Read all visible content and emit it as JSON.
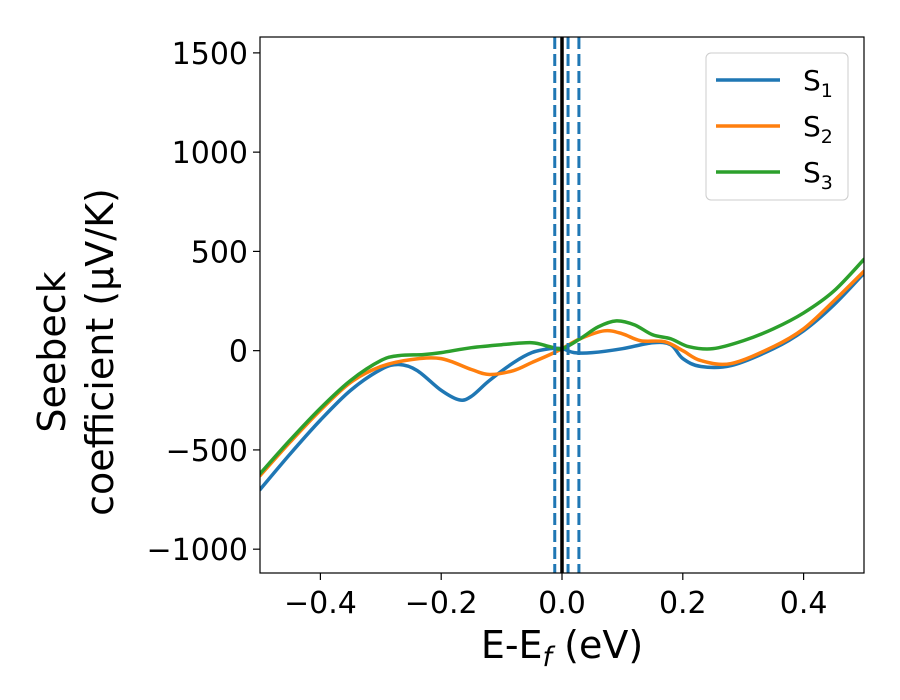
{
  "chart_data": {
    "type": "line",
    "title": "",
    "xlabel": "E-E",
    "xlabel_sub": "f",
    "xlabel_unit": " (eV)",
    "ylabel_line1": "Seebeck",
    "ylabel_line2": "coefficient  (μV/K)",
    "xlim": [
      -0.5,
      0.5
    ],
    "ylim": [
      -1120,
      1580
    ],
    "xticks": [
      -0.4,
      -0.2,
      0.0,
      0.2,
      0.4
    ],
    "xtick_labels": [
      "−0.4",
      "−0.2",
      "0.0",
      "0.2",
      "0.4"
    ],
    "yticks": [
      -1000,
      -500,
      0,
      500,
      1000,
      1500
    ],
    "ytick_labels": [
      "−1000",
      "−500",
      "0",
      "500",
      "1000",
      "1500"
    ],
    "grid": false,
    "legend_position": "top-right",
    "vlines": [
      {
        "x": 0.0,
        "style": "solid",
        "color": "#000000"
      },
      {
        "x": -0.012,
        "style": "dashed",
        "color": "#1f77b4"
      },
      {
        "x": 0.01,
        "style": "dashed",
        "color": "#1f77b4"
      },
      {
        "x": 0.028,
        "style": "dashed",
        "color": "#1f77b4"
      }
    ],
    "series": [
      {
        "name": "S",
        "sub": "1",
        "color": "#1f77b4",
        "x": [
          -0.5,
          -0.45,
          -0.4,
          -0.35,
          -0.3,
          -0.27,
          -0.24,
          -0.2,
          -0.17,
          -0.15,
          -0.12,
          -0.08,
          -0.05,
          -0.02,
          0.0,
          0.02,
          0.05,
          0.1,
          0.15,
          0.18,
          0.2,
          0.23,
          0.28,
          0.35,
          0.4,
          0.45,
          0.5
        ],
        "y": [
          -700,
          -520,
          -350,
          -200,
          -95,
          -70,
          -100,
          -200,
          -248,
          -230,
          -150,
          -60,
          -10,
          10,
          10,
          -10,
          -10,
          10,
          40,
          30,
          -40,
          -80,
          -75,
          10,
          100,
          230,
          390
        ]
      },
      {
        "name": "S",
        "sub": "2",
        "color": "#ff7f0e",
        "x": [
          -0.5,
          -0.45,
          -0.4,
          -0.35,
          -0.3,
          -0.25,
          -0.2,
          -0.15,
          -0.12,
          -0.08,
          -0.05,
          -0.02,
          0.0,
          0.03,
          0.07,
          0.1,
          0.13,
          0.17,
          0.2,
          0.23,
          0.28,
          0.35,
          0.4,
          0.45,
          0.5
        ],
        "y": [
          -630,
          -460,
          -300,
          -160,
          -80,
          -45,
          -40,
          -95,
          -120,
          -100,
          -60,
          -20,
          10,
          60,
          100,
          85,
          50,
          45,
          0,
          -50,
          -65,
          20,
          110,
          250,
          400
        ]
      },
      {
        "name": "S",
        "sub": "3",
        "color": "#2ca02c",
        "x": [
          -0.5,
          -0.45,
          -0.4,
          -0.35,
          -0.3,
          -0.27,
          -0.23,
          -0.2,
          -0.15,
          -0.1,
          -0.05,
          -0.02,
          0.0,
          0.03,
          0.06,
          0.09,
          0.12,
          0.15,
          0.18,
          0.21,
          0.25,
          0.3,
          0.35,
          0.4,
          0.45,
          0.5
        ],
        "y": [
          -620,
          -450,
          -290,
          -150,
          -50,
          -25,
          -20,
          -10,
          15,
          30,
          40,
          20,
          10,
          60,
          120,
          150,
          130,
          80,
          60,
          20,
          10,
          50,
          110,
          190,
          300,
          460
        ]
      }
    ]
  }
}
